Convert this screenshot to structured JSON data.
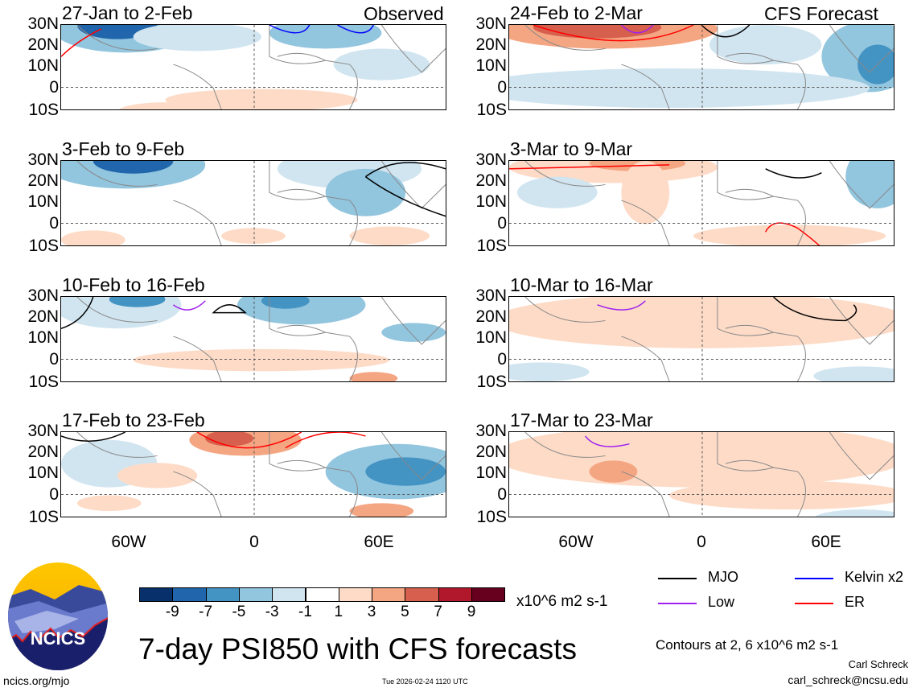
{
  "observed_label": "Observed",
  "forecast_label": "CFS Forecast",
  "panels_observed": [
    "27-Jan to 2-Feb",
    "3-Feb to 9-Feb",
    "10-Feb to 16-Feb",
    "17-Feb to 23-Feb"
  ],
  "panels_forecast": [
    "24-Feb to 2-Mar",
    "3-Mar to 9-Mar",
    "10-Mar to 16-Mar",
    "17-Mar to 23-Mar"
  ],
  "lat_labels": [
    "30N",
    "20N",
    "10N",
    "0",
    "10S"
  ],
  "lon_labels": [
    "60W",
    "0",
    "60E"
  ],
  "colorbar": {
    "colors": [
      "#08306b",
      "#2166ac",
      "#4393c3",
      "#92c5de",
      "#d1e5f0",
      "#ffffff",
      "#fddbc7",
      "#f4a582",
      "#d6604d",
      "#b2182b",
      "#67001f"
    ],
    "labels": [
      "-9",
      "-7",
      "-5",
      "-3",
      "-1",
      "1",
      "3",
      "5",
      "7",
      "9"
    ],
    "units": "x10^6 m2 s-1"
  },
  "legend": [
    {
      "label": "MJO",
      "color": "#000000"
    },
    {
      "label": "Kelvin x2",
      "color": "#0000ff"
    },
    {
      "label": "Low",
      "color": "#a020f0"
    },
    {
      "label": "ER",
      "color": "#ff0000"
    }
  ],
  "logo_text": "NCICS",
  "title": "7-day PSI850 with CFS forecasts",
  "contours_note": "Contours at 2, 6 x10^6 m2 s-1",
  "author": "Carl Schreck",
  "email": "carl_schreck@ncsu.edu",
  "site": "ncics.org/mjo",
  "timestamp": "Tue 2026-02-24 1120 UTC"
}
